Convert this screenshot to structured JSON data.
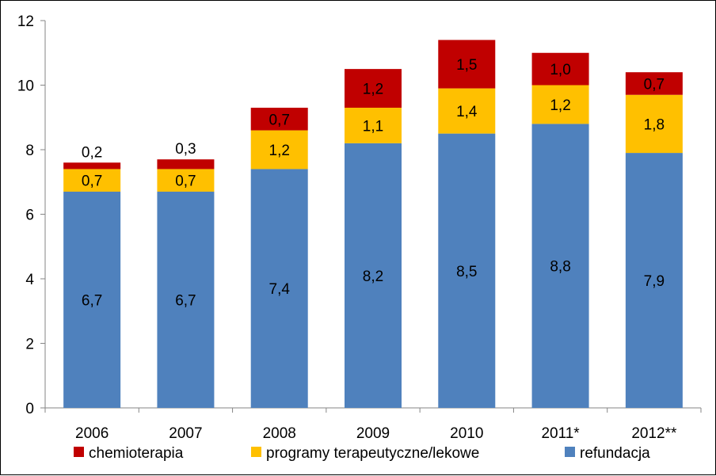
{
  "chart_data": {
    "type": "bar",
    "stacked": true,
    "categories": [
      "2006",
      "2007",
      "2008",
      "2009",
      "2010",
      "2011*",
      "2012**"
    ],
    "series": [
      {
        "name": "refundacja",
        "color": "#4f81bd",
        "values": [
          6.7,
          6.7,
          7.4,
          8.2,
          8.5,
          8.8,
          7.9
        ],
        "labels": [
          "6,7",
          "6,7",
          "7,4",
          "8,2",
          "8,5",
          "8,8",
          "7,9"
        ]
      },
      {
        "name": "programy terapeutyczne/lekowe",
        "color": "#ffc000",
        "values": [
          0.7,
          0.7,
          1.2,
          1.1,
          1.4,
          1.2,
          1.8
        ],
        "labels": [
          "0,7",
          "0,7",
          "1,2",
          "1,1",
          "1,4",
          "1,2",
          "1,8"
        ]
      },
      {
        "name": "chemioterapia",
        "color": "#c00000",
        "values": [
          0.2,
          0.3,
          0.7,
          1.2,
          1.5,
          1.0,
          0.7
        ],
        "labels": [
          "0,2",
          "0,3",
          "0,7",
          "1,2",
          "1,5",
          "1,0",
          "0,7"
        ]
      }
    ],
    "ylim": [
      0,
      12
    ],
    "yticks": [
      "0",
      "2",
      "4",
      "6",
      "8",
      "10",
      "12"
    ],
    "grid": false,
    "legend": {
      "position": "bottom",
      "order": [
        "chemioterapia",
        "programy terapeutyczne/lekowe",
        "refundacja"
      ]
    },
    "title": "",
    "xlabel": "",
    "ylabel": ""
  }
}
